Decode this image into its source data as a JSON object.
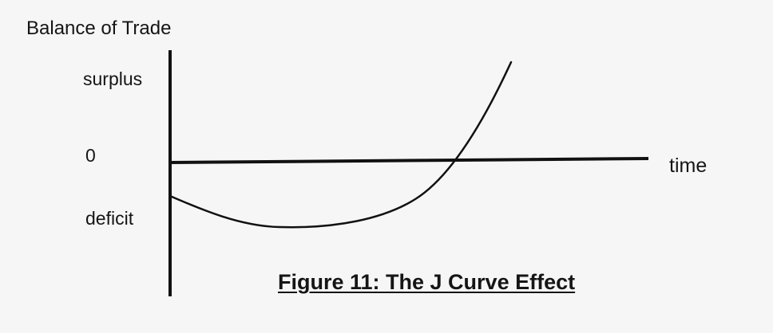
{
  "diagram": {
    "y_axis_title": "Balance of Trade",
    "x_axis_title": "time",
    "levels": {
      "surplus": "surplus",
      "zero": "0",
      "deficit": "deficit"
    },
    "caption": "Figure 11: The J Curve Effect"
  }
}
